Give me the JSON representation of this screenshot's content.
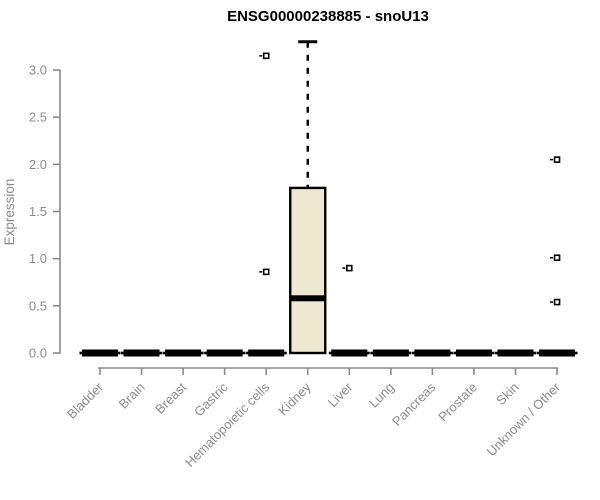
{
  "chart_data": {
    "type": "boxplot",
    "title": "ENSG00000238885 - snoU13",
    "xlabel": "",
    "ylabel": "Expression",
    "ylim": [
      0,
      3.3
    ],
    "yticks": [
      "0.0",
      "0.5",
      "1.0",
      "1.5",
      "2.0",
      "2.5",
      "3.0"
    ],
    "grid": false,
    "legend": null,
    "categories": [
      "Bladder",
      "Brain",
      "Breast",
      "Gastric",
      "Hematopoietic cells",
      "Kidney",
      "Liver",
      "Lung",
      "Pancreas",
      "Prostate",
      "Skin",
      "Unknown / Other"
    ],
    "boxes": [
      {
        "category": "Bladder",
        "min": 0,
        "q1": 0,
        "median": 0,
        "q3": 0,
        "max": 0,
        "outliers": []
      },
      {
        "category": "Brain",
        "min": 0,
        "q1": 0,
        "median": 0,
        "q3": 0,
        "max": 0,
        "outliers": []
      },
      {
        "category": "Breast",
        "min": 0,
        "q1": 0,
        "median": 0,
        "q3": 0,
        "max": 0,
        "outliers": []
      },
      {
        "category": "Gastric",
        "min": 0,
        "q1": 0,
        "median": 0,
        "q3": 0,
        "max": 0,
        "outliers": []
      },
      {
        "category": "Hematopoietic cells",
        "min": 0,
        "q1": 0,
        "median": 0,
        "q3": 0,
        "max": 0,
        "outliers": [
          0.86,
          3.15
        ]
      },
      {
        "category": "Kidney",
        "min": 0,
        "q1": 0,
        "median": 0.58,
        "q3": 1.75,
        "max": 3.3,
        "outliers": []
      },
      {
        "category": "Liver",
        "min": 0,
        "q1": 0,
        "median": 0,
        "q3": 0,
        "max": 0,
        "outliers": [
          0.9
        ]
      },
      {
        "category": "Lung",
        "min": 0,
        "q1": 0,
        "median": 0,
        "q3": 0,
        "max": 0,
        "outliers": []
      },
      {
        "category": "Pancreas",
        "min": 0,
        "q1": 0,
        "median": 0,
        "q3": 0,
        "max": 0,
        "outliers": []
      },
      {
        "category": "Prostate",
        "min": 0,
        "q1": 0,
        "median": 0,
        "q3": 0,
        "max": 0,
        "outliers": []
      },
      {
        "category": "Skin",
        "min": 0,
        "q1": 0,
        "median": 0,
        "q3": 0,
        "max": 0,
        "outliers": []
      },
      {
        "category": "Unknown / Other",
        "min": 0,
        "q1": 0,
        "median": 0,
        "q3": 0,
        "max": 0,
        "outliers": [
          0.54,
          1.01,
          2.05
        ]
      }
    ],
    "colors": {
      "box_fill": "#EDE8D0",
      "box_border": "#000000",
      "median": "#000000",
      "whisker": "#000000",
      "outlier_stroke": "#000000",
      "outlier_fill": "#FFFFFF",
      "axis": "#8C8C8C",
      "tick_label": "#8C8C8C",
      "title": "#000000",
      "background": "#FFFFFF"
    }
  }
}
